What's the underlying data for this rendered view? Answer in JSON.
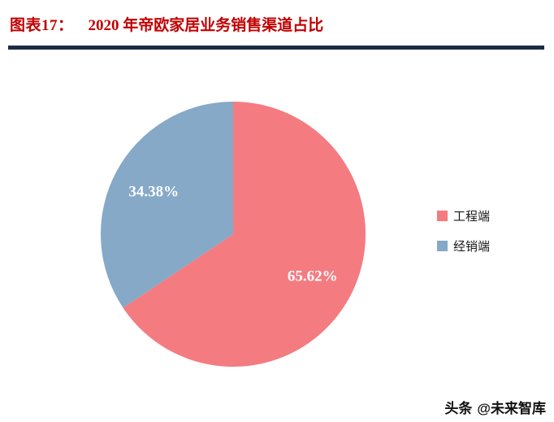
{
  "header": {
    "label": "图表17：",
    "title": "2020 年帝欧家居业务销售渠道占比"
  },
  "theme": {
    "title_color": "#c00000",
    "divider_color": "#1c2b45"
  },
  "chart_data": {
    "type": "pie",
    "title": "2020 年帝欧家居业务销售渠道占比",
    "legend_position": "right",
    "start_angle_deg": 0,
    "slices": [
      {
        "label": "工程端",
        "value": 65.62,
        "pct_label": "65.62%",
        "color": "#f47b80"
      },
      {
        "label": "经销端",
        "value": 34.38,
        "pct_label": "34.38%",
        "color": "#85a9c7"
      }
    ]
  },
  "watermark": {
    "brand": "头条",
    "handle": "@未来智库"
  }
}
